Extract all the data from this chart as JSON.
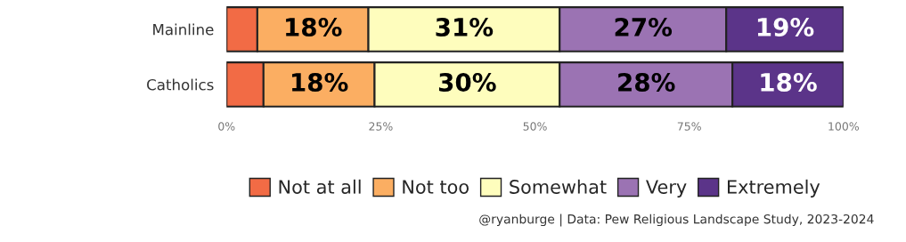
{
  "chart_data": {
    "type": "bar",
    "orientation": "horizontal",
    "stacked": true,
    "categories": [
      "Mainline",
      "Catholics"
    ],
    "series": [
      {
        "name": "Not at all",
        "color": "#f26b45",
        "values": [
          5,
          6
        ],
        "value_labels": [
          null,
          null
        ]
      },
      {
        "name": "Not too",
        "color": "#fbae62",
        "values": [
          18,
          18
        ],
        "value_labels": [
          "18%",
          "18%"
        ]
      },
      {
        "name": "Somewhat",
        "color": "#fefdbd",
        "values": [
          31,
          30
        ],
        "value_labels": [
          "31%",
          "30%"
        ]
      },
      {
        "name": "Very",
        "color": "#9b73b3",
        "values": [
          27,
          28
        ],
        "value_labels": [
          "27%",
          "28%"
        ]
      },
      {
        "name": "Extremely",
        "color": "#5b3489",
        "values": [
          19,
          18
        ],
        "value_labels": [
          "19%",
          "18%"
        ]
      }
    ],
    "xlim": [
      0,
      100
    ],
    "xticks": [
      {
        "value": 0,
        "label": "0%"
      },
      {
        "value": 25,
        "label": "25%"
      },
      {
        "value": 50,
        "label": "50%"
      },
      {
        "value": 75,
        "label": "75%"
      },
      {
        "value": 100,
        "label": "100%"
      }
    ],
    "grid": false,
    "legend": "bottom",
    "annotations": [
      "@ryanburge | Data: Pew Religious Landscape Study, 2023-2024"
    ]
  }
}
